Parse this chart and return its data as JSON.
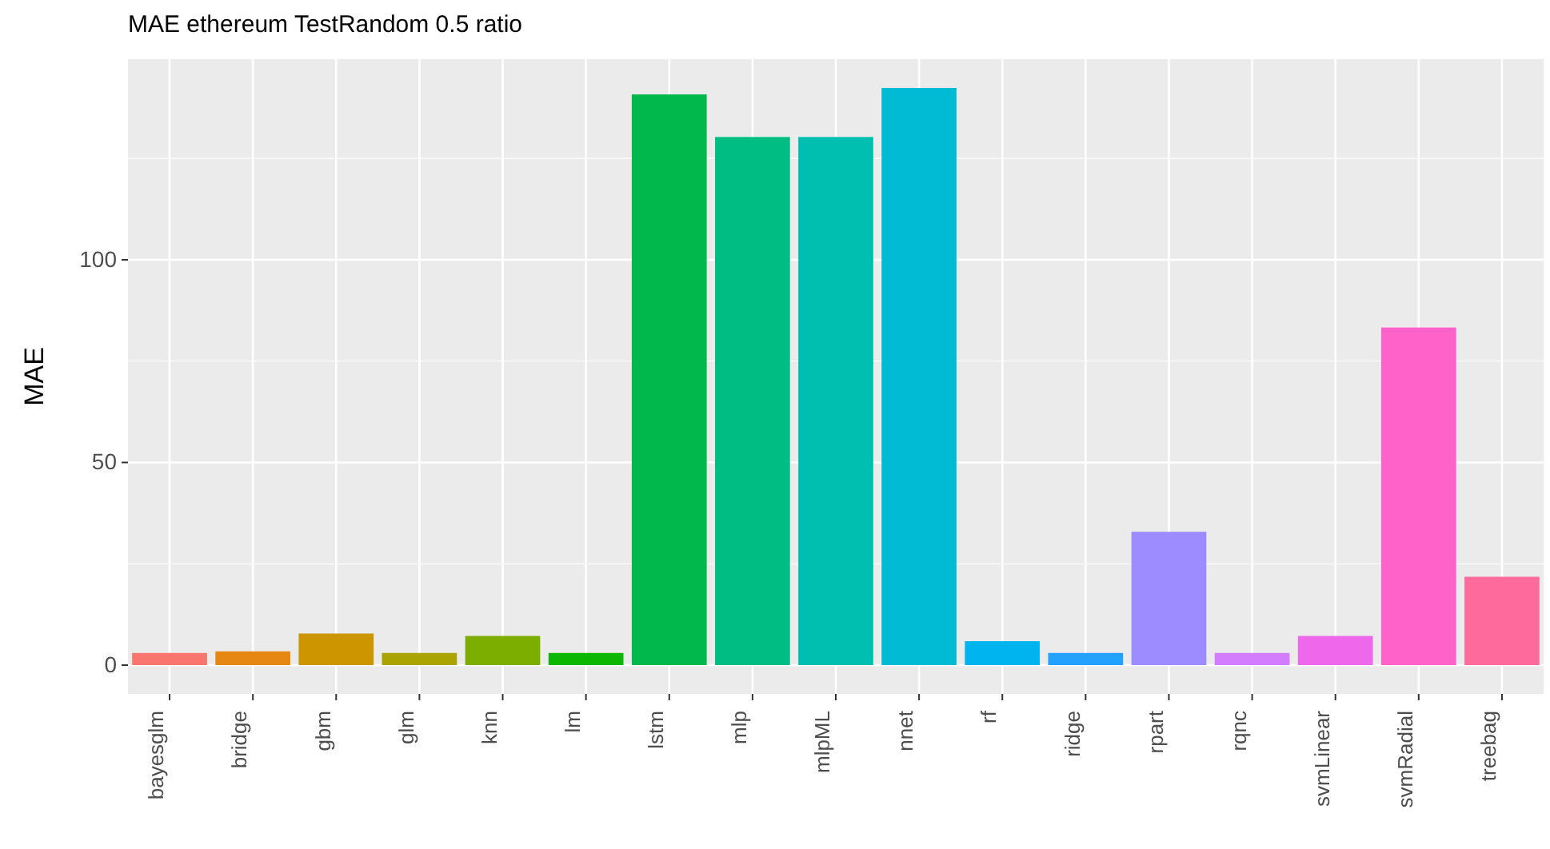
{
  "chart_data": {
    "type": "bar",
    "title": "MAE ethereum TestRandom 0.5 ratio",
    "ylabel": "MAE",
    "categories": [
      "bayesglm",
      "bridge",
      "gbm",
      "glm",
      "knn",
      "lm",
      "lstm",
      "mlp",
      "mlpML",
      "nnet",
      "rf",
      "ridge",
      "rpart",
      "rqnc",
      "svmLinear",
      "svmRadial",
      "treebag"
    ],
    "values": [
      3.0,
      3.4,
      7.8,
      3.0,
      7.2,
      3.0,
      140.8,
      130.3,
      130.3,
      142.4,
      5.9,
      3.0,
      32.9,
      3.0,
      7.2,
      83.3,
      21.8
    ],
    "colors": [
      "#f8766d",
      "#e68613",
      "#cd9600",
      "#aba300",
      "#7cae00",
      "#0cb702",
      "#00b84c",
      "#00be83",
      "#00bfb0",
      "#00bbd3",
      "#00b4ef",
      "#24a0ff",
      "#9d8cff",
      "#d47cff",
      "#ef67eb",
      "#ff62c9",
      "#ff6a9c"
    ],
    "ylim": [
      -7.1,
      149.5
    ],
    "yticks": [
      0,
      50,
      100
    ],
    "grid": true
  }
}
